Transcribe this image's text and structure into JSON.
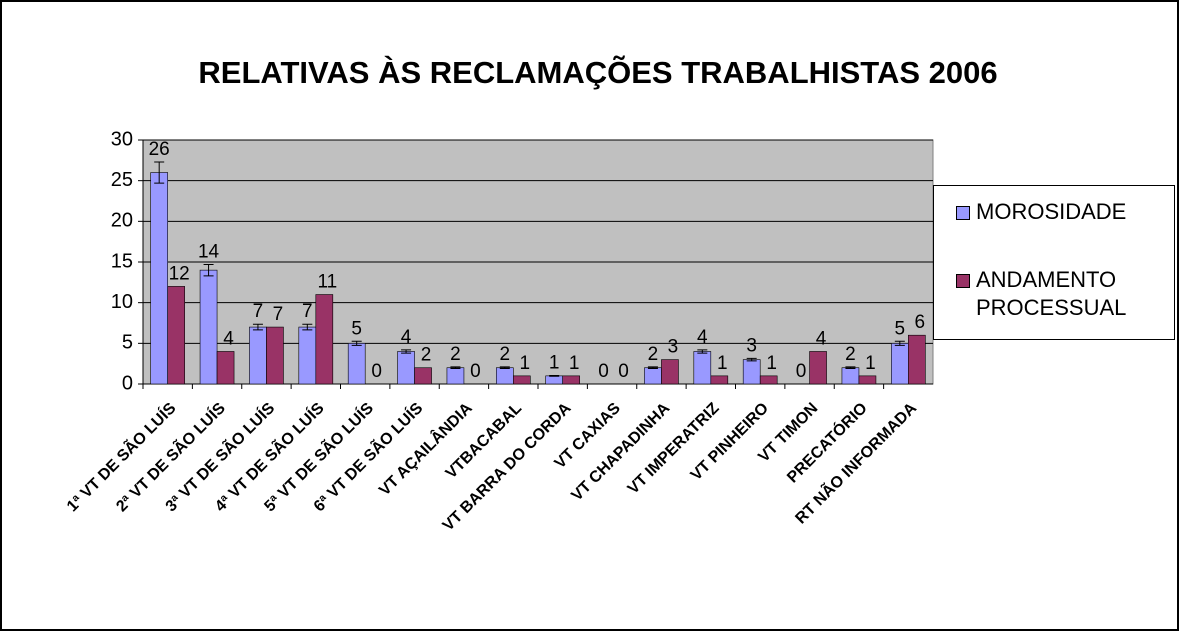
{
  "chart_data": {
    "type": "bar",
    "title": "RELATIVAS ÀS RECLAMAÇÕES TRABALHISTAS 2006",
    "categories": [
      "1ª VT DE SÃO LUÍS",
      "2ª VT DE SÃO LUÍS",
      "3ª VT DE SÃO LUÍS",
      "4ª VT DE SÃO LUÍS",
      "5ª VT DE SÃO LUÍS",
      "6ª VT DE SÃO LUÍS",
      "VT AÇAILÂNDIA",
      "VTBACABAL",
      "VT BARRA DO CORDA",
      "VT CAXIAS",
      "VT CHAPADINHA",
      "VT IMPERATRIZ",
      "VT PINHEIRO",
      "VT TIMON",
      "PRECATÓRIO",
      "RT NÃO INFORMADA"
    ],
    "series": [
      {
        "name": "MOROSIDADE",
        "color": "#9999ff",
        "values": [
          26,
          14,
          7,
          7,
          5,
          4,
          2,
          2,
          1,
          0,
          2,
          4,
          3,
          0,
          2,
          5
        ],
        "errors": [
          1.3,
          0.7,
          0.35,
          0.35,
          0.25,
          0.2,
          0.1,
          0.1,
          0.05,
          0,
          0.1,
          0.2,
          0.15,
          0,
          0.1,
          0.25
        ]
      },
      {
        "name": "ANDAMENTO PROCESSUAL",
        "color": "#993366",
        "values": [
          12,
          4,
          7,
          11,
          0,
          2,
          0,
          1,
          1,
          0,
          3,
          1,
          1,
          4,
          1,
          6
        ]
      }
    ],
    "ylim": [
      0,
      30
    ],
    "yticks": [
      0,
      5,
      10,
      15,
      20,
      25,
      30
    ],
    "grid": true,
    "legend": "right"
  }
}
